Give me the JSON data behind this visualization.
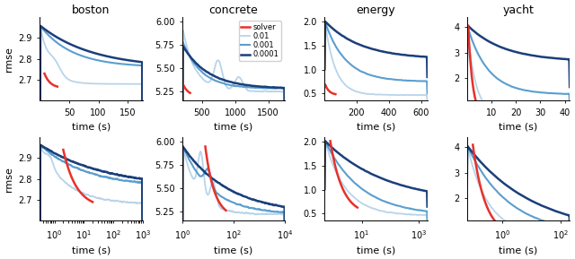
{
  "title_fontsize": 9,
  "label_fontsize": 8,
  "tick_fontsize": 7,
  "lr_labels": [
    "solver",
    "0.01",
    "0.001",
    "0.0001"
  ],
  "lr_colors": [
    "#e8312a",
    "#b8d4ea",
    "#5b9ecf",
    "#1b3f7a"
  ],
  "lr_linewidths": [
    1.8,
    1.3,
    1.5,
    1.8
  ],
  "top_row": {
    "boston": {
      "xlim": [
        0,
        175
      ],
      "ylim": [
        2.6,
        3.0
      ],
      "yticks": [
        2.7,
        2.8,
        2.9
      ],
      "xticks": [
        50,
        100,
        150
      ]
    },
    "concrete": {
      "xlim": [
        200,
        1750
      ],
      "ylim": [
        5.15,
        6.05
      ],
      "yticks": [
        5.25,
        5.5,
        5.75,
        6.0
      ],
      "xticks": [
        500,
        1000,
        1500
      ]
    },
    "energy": {
      "xlim": [
        0,
        640
      ],
      "ylim": [
        0.35,
        2.1
      ],
      "yticks": [
        0.5,
        1.0,
        1.5,
        2.0
      ],
      "xticks": [
        200,
        400,
        600
      ]
    },
    "yacht": {
      "xlim": [
        0,
        42
      ],
      "ylim": [
        1.1,
        4.4
      ],
      "yticks": [
        2,
        3,
        4
      ],
      "xticks": [
        10,
        20,
        30,
        40
      ]
    }
  },
  "bot_row": {
    "boston": {
      "xlog": [
        -0.5,
        3.0
      ],
      "ylim": [
        2.6,
        3.0
      ],
      "yticks": [
        2.7,
        2.8,
        2.9
      ]
    },
    "concrete": {
      "xlog": [
        0.0,
        4.0
      ],
      "ylim": [
        5.15,
        6.05
      ],
      "yticks": [
        5.25,
        5.5,
        5.75,
        6.0
      ]
    },
    "energy": {
      "xlog": [
        -0.3,
        3.3
      ],
      "ylim": [
        0.35,
        2.1
      ],
      "yticks": [
        0.5,
        1.0,
        1.5,
        2.0
      ]
    },
    "yacht": {
      "xlog": [
        -1.2,
        2.3
      ],
      "ylim": [
        1.1,
        4.4
      ],
      "yticks": [
        2,
        3,
        4
      ]
    }
  }
}
